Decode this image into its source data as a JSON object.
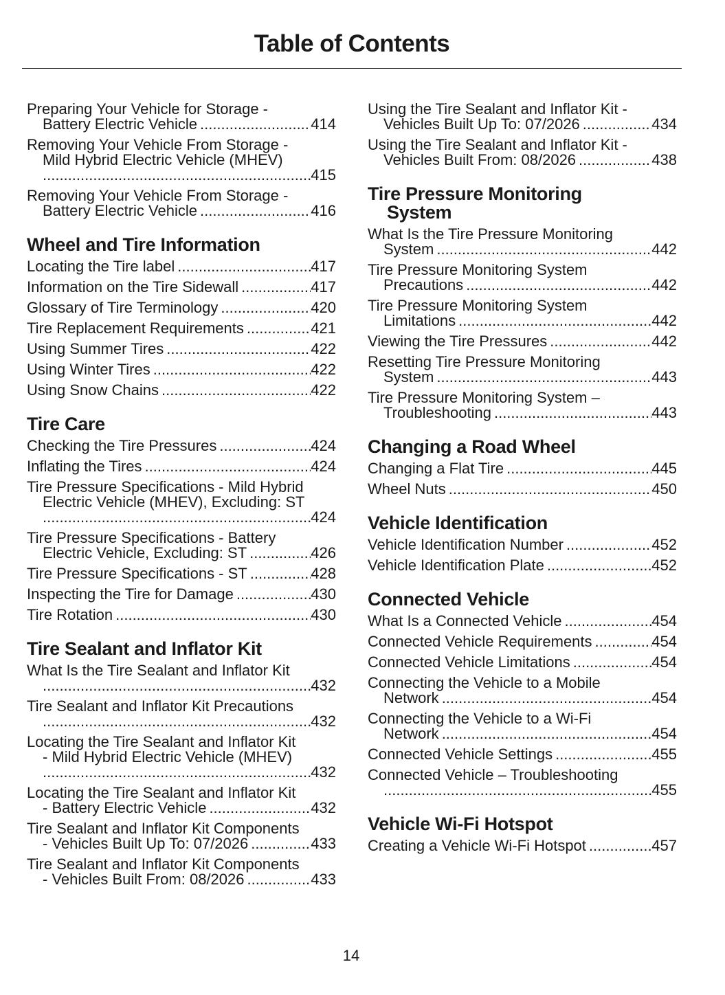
{
  "title": "Table of Contents",
  "page_number": "14",
  "columns": [
    [
      {
        "heading": [],
        "entries": [
          {
            "lines": [
              "Preparing Your Vehicle for Storage -",
              "Battery Electric Vehicle"
            ],
            "page": "414"
          },
          {
            "lines": [
              "Removing Your Vehicle From Storage -",
              "Mild Hybrid Electric Vehicle (MHEV)",
              ""
            ],
            "page": "415"
          },
          {
            "lines": [
              "Removing Your Vehicle From Storage -",
              "Battery Electric Vehicle"
            ],
            "page": "416"
          }
        ]
      },
      {
        "heading": [
          "Wheel and Tire Information"
        ],
        "entries": [
          {
            "lines": [
              "Locating the Tire label"
            ],
            "page": "417"
          },
          {
            "lines": [
              "Information on the Tire Sidewall"
            ],
            "page": "417"
          },
          {
            "lines": [
              "Glossary of Tire Terminology"
            ],
            "page": "420"
          },
          {
            "lines": [
              "Tire Replacement Requirements"
            ],
            "page": "421"
          },
          {
            "lines": [
              "Using Summer Tires"
            ],
            "page": "422"
          },
          {
            "lines": [
              "Using Winter Tires"
            ],
            "page": "422"
          },
          {
            "lines": [
              "Using Snow Chains"
            ],
            "page": "422"
          }
        ]
      },
      {
        "heading": [
          "Tire Care"
        ],
        "entries": [
          {
            "lines": [
              "Checking the Tire Pressures"
            ],
            "page": "424"
          },
          {
            "lines": [
              "Inflating the Tires"
            ],
            "page": "424"
          },
          {
            "lines": [
              "Tire Pressure Specifications - Mild Hybrid",
              "Electric Vehicle (MHEV), Excluding: ST",
              ""
            ],
            "page": "424"
          },
          {
            "lines": [
              "Tire Pressure Specifications - Battery",
              "Electric Vehicle, Excluding: ST"
            ],
            "page": "426"
          },
          {
            "lines": [
              "Tire Pressure Specifications - ST"
            ],
            "page": "428"
          },
          {
            "lines": [
              "Inspecting the Tire for Damage"
            ],
            "page": "430"
          },
          {
            "lines": [
              "Tire Rotation"
            ],
            "page": "430"
          }
        ]
      },
      {
        "heading": [
          "Tire Sealant and Inflator Kit"
        ],
        "entries": [
          {
            "lines": [
              "What Is the Tire Sealant and Inflator Kit",
              ""
            ],
            "page": "432"
          },
          {
            "lines": [
              "Tire Sealant and Inflator Kit Precautions",
              ""
            ],
            "page": "432"
          },
          {
            "lines": [
              "Locating the Tire Sealant and Inflator Kit",
              "- Mild Hybrid Electric Vehicle (MHEV)",
              ""
            ],
            "page": "432"
          },
          {
            "lines": [
              "Locating the Tire Sealant and Inflator Kit",
              "- Battery Electric Vehicle"
            ],
            "page": "432"
          },
          {
            "lines": [
              "Tire Sealant and Inflator Kit Components",
              "- Vehicles Built Up To: 07/2026"
            ],
            "page": "433"
          },
          {
            "lines": [
              "Tire Sealant and Inflator Kit Components",
              "- Vehicles Built From: 08/2026"
            ],
            "page": "433"
          }
        ]
      }
    ],
    [
      {
        "heading": [],
        "entries": [
          {
            "lines": [
              "Using the Tire Sealant and Inflator Kit -",
              "Vehicles Built Up To: 07/2026"
            ],
            "page": "434"
          },
          {
            "lines": [
              "Using the Tire Sealant and Inflator Kit -",
              "Vehicles Built From: 08/2026"
            ],
            "page": "438"
          }
        ]
      },
      {
        "heading": [
          "Tire Pressure Monitoring",
          "System"
        ],
        "entries": [
          {
            "lines": [
              "What Is the Tire Pressure Monitoring",
              "System"
            ],
            "page": "442"
          },
          {
            "lines": [
              "Tire Pressure Monitoring System",
              "Precautions"
            ],
            "page": "442"
          },
          {
            "lines": [
              "Tire Pressure Monitoring System",
              "Limitations"
            ],
            "page": "442"
          },
          {
            "lines": [
              "Viewing the Tire Pressures"
            ],
            "page": "442"
          },
          {
            "lines": [
              "Resetting Tire Pressure Monitoring",
              "System"
            ],
            "page": "443"
          },
          {
            "lines": [
              "Tire Pressure Monitoring System –",
              "Troubleshooting"
            ],
            "page": "443"
          }
        ]
      },
      {
        "heading": [
          "Changing a Road Wheel"
        ],
        "entries": [
          {
            "lines": [
              "Changing a Flat Tire"
            ],
            "page": "445"
          },
          {
            "lines": [
              "Wheel Nuts"
            ],
            "page": "450"
          }
        ]
      },
      {
        "heading": [
          "Vehicle Identification"
        ],
        "entries": [
          {
            "lines": [
              "Vehicle Identification Number"
            ],
            "page": "452"
          },
          {
            "lines": [
              "Vehicle Identification Plate"
            ],
            "page": "452"
          }
        ]
      },
      {
        "heading": [
          "Connected Vehicle"
        ],
        "entries": [
          {
            "lines": [
              "What Is a Connected Vehicle"
            ],
            "page": "454"
          },
          {
            "lines": [
              "Connected Vehicle Requirements"
            ],
            "page": "454"
          },
          {
            "lines": [
              "Connected Vehicle Limitations"
            ],
            "page": "454"
          },
          {
            "lines": [
              "Connecting the Vehicle to a Mobile",
              "Network"
            ],
            "page": "454"
          },
          {
            "lines": [
              "Connecting the Vehicle to a Wi-Fi",
              "Network"
            ],
            "page": "454"
          },
          {
            "lines": [
              "Connected Vehicle Settings"
            ],
            "page": "455"
          },
          {
            "lines": [
              "Connected Vehicle – Troubleshooting",
              ""
            ],
            "page": "455"
          }
        ]
      },
      {
        "heading": [
          "Vehicle Wi-Fi Hotspot"
        ],
        "entries": [
          {
            "lines": [
              "Creating a Vehicle Wi-Fi Hotspot"
            ],
            "page": "457"
          }
        ]
      }
    ]
  ]
}
